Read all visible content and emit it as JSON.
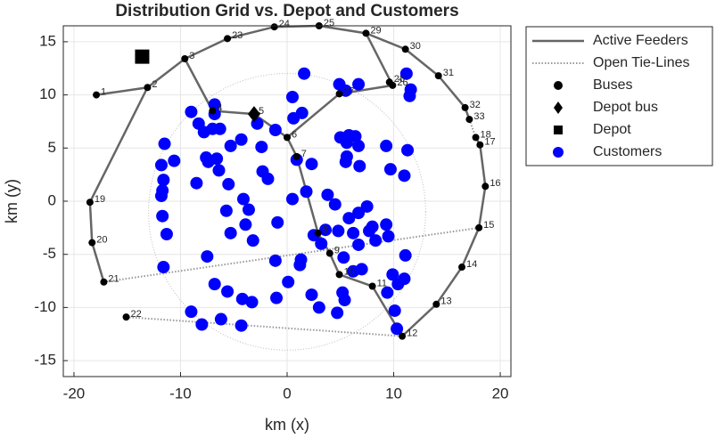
{
  "chart_data": {
    "type": "network",
    "title": "Distribution Grid vs. Depot and Customers",
    "xlabel": "km (x)",
    "ylabel": "km (y)",
    "xlim": [
      -21,
      21
    ],
    "ylim": [
      -16.5,
      16.5
    ],
    "xticks": [
      -20,
      -10,
      0,
      10,
      20
    ],
    "yticks": [
      -15,
      -10,
      -5,
      0,
      5,
      10,
      15
    ],
    "grid": true,
    "lines": [
      {
        "name": "Active Feeders",
        "color": "#666666",
        "style": "solid",
        "x": [
          -17.9,
          -13.1,
          -9.6,
          -5.6,
          -1.2,
          3.0,
          7.4,
          11.1,
          14.2,
          16.7,
          17.1,
          null,
          17.7,
          18.1,
          18.6,
          18.0,
          16.4,
          14.0,
          10.8,
          null,
          -9.6,
          -7.0,
          -3.1,
          0,
          0.9,
          2.9,
          4.0,
          4.9,
          8.0,
          10.8,
          null,
          -13.1,
          -18.5,
          -18.3,
          -17.2,
          null,
          0,
          4.9,
          9.9,
          7.4
        ],
        "y": [
          10.0,
          10.7,
          13.4,
          15.3,
          16.4,
          16.5,
          15.8,
          14.3,
          11.8,
          8.8,
          7.7,
          null,
          6.0,
          5.3,
          1.4,
          -2.5,
          -6.2,
          -9.7,
          -12.7,
          null,
          13.4,
          8.5,
          8.2,
          6.0,
          4.2,
          -3.0,
          -4.9,
          -6.9,
          -8.0,
          -12.7,
          null,
          10.7,
          -0.1,
          -3.9,
          -7.6,
          null,
          6.0,
          10.1,
          10.9,
          15.8
        ]
      },
      {
        "name": "Open Tie-Lines",
        "color": "#999999",
        "style": "dotted",
        "x": [
          -17.2,
          18.0,
          null,
          -15.1,
          10.8,
          null,
          17.1,
          17.7
        ],
        "y": [
          -7.6,
          -2.5,
          null,
          -10.9,
          -12.7,
          null,
          7.7,
          6.0
        ]
      }
    ],
    "buses": {
      "name": "Buses",
      "color": "#000000",
      "labels": [
        "1",
        "2",
        "3",
        "4",
        "5",
        "6",
        "7",
        "8",
        "9",
        "10",
        "11",
        "12",
        "13",
        "14",
        "15",
        "16",
        "17",
        "18",
        "19",
        "20",
        "21",
        "22",
        "23",
        "24",
        "25",
        "26",
        "27",
        "28",
        "29",
        "30",
        "31",
        "32",
        "33"
      ],
      "x": [
        -17.9,
        -13.1,
        -9.6,
        -7.0,
        -3.1,
        0,
        0.9,
        2.9,
        4.0,
        4.9,
        8.0,
        10.8,
        14.0,
        16.4,
        18.0,
        18.6,
        18.1,
        17.7,
        -18.5,
        -18.3,
        -17.2,
        -15.1,
        -5.6,
        -1.2,
        3.0,
        9.9,
        4.9,
        9.6,
        7.4,
        11.1,
        14.2,
        16.7,
        17.1
      ],
      "y": [
        10.0,
        10.7,
        13.4,
        8.5,
        8.2,
        6.0,
        4.2,
        -3.0,
        -4.9,
        -6.9,
        -8.0,
        -12.7,
        -9.7,
        -6.2,
        -2.5,
        1.4,
        5.3,
        6.0,
        -0.1,
        -3.9,
        -7.6,
        -10.9,
        15.3,
        16.4,
        16.5,
        10.9,
        10.1,
        11.2,
        15.8,
        14.3,
        11.8,
        8.8,
        7.7
      ]
    },
    "depot_bus": {
      "name": "Depot bus",
      "color": "#000000",
      "x": -3.1,
      "y": 8.2
    },
    "depot": {
      "name": "Depot",
      "color": "#000000",
      "x": -13.6,
      "y": 13.6
    },
    "customers": {
      "name": "Customers",
      "color": "#0000ff",
      "x": [
        -11.5,
        -11.8,
        -10.6,
        -11.6,
        -11.7,
        -11.8,
        -11.7,
        -11.3,
        -11.6,
        -9.0,
        -8.3,
        -7.8,
        -6.8,
        -6.8,
        -7.0,
        -6.3,
        -8.5,
        -7.6,
        -7.4,
        -6.6,
        -6.4,
        -5.5,
        -5.3,
        -4.3,
        -2.8,
        -2.4,
        -1.1,
        -2.3,
        -1.8,
        -4.1,
        -3.6,
        -5.7,
        -3.9,
        -5.3,
        -3.2,
        -7.5,
        -6.8,
        -5.6,
        -4.2,
        -3.3,
        -1.0,
        -9.0,
        -8.0,
        -6.2,
        -4.3,
        -1.1,
        -0.9,
        0.5,
        0.9,
        2.3,
        1.8,
        3.8,
        4.5,
        4.8,
        3.2,
        5.3,
        6.2,
        7.0,
        5.4,
        4.7,
        5.2,
        2.3,
        3.0,
        1.2,
        1.3,
        0.1,
        6.7,
        6.2,
        7.7,
        5.8,
        6.7,
        7.5,
        8.0,
        9.3,
        8.3,
        9.5,
        9.9,
        10.4,
        11.0,
        11.1,
        9.4,
        10.1,
        10.3,
        9.7,
        11.0,
        11.3,
        11.6,
        11.5,
        11.2,
        4.9,
        6.7,
        5.5,
        1.6,
        0.5,
        1.4,
        0.6,
        5.0,
        5.8,
        6.4,
        5.6,
        6.7,
        5.6,
        5.5,
        6.8,
        9.3,
        3.6,
        2.5
      ],
      "y": [
        5.4,
        3.4,
        3.8,
        2.0,
        1.0,
        0.5,
        -1.4,
        -3.1,
        -6.2,
        8.4,
        7.3,
        6.5,
        9.1,
        8.2,
        6.8,
        6.8,
        1.7,
        4.1,
        3.7,
        4.0,
        2.9,
        1.6,
        5.2,
        5.8,
        7.3,
        5.1,
        6.7,
        2.8,
        2.1,
        0.2,
        -0.8,
        -0.9,
        -2.2,
        -3.0,
        -3.7,
        -5.2,
        -7.8,
        -8.5,
        -9.2,
        -9.5,
        -9.1,
        -10.4,
        -11.6,
        -11.1,
        -11.7,
        -5.6,
        -2.0,
        0.2,
        3.9,
        3.5,
        0.9,
        0.6,
        -0.3,
        -2.8,
        -4.0,
        -5.3,
        -6.6,
        -6.4,
        -9.3,
        -10.5,
        -8.6,
        -8.8,
        -10.0,
        -6.0,
        -5.5,
        -7.6,
        -4.1,
        -3.0,
        -2.8,
        -1.6,
        -1.1,
        -0.5,
        -2.4,
        -2.2,
        -3.7,
        -3.3,
        -6.9,
        -7.8,
        -7.3,
        -5.1,
        -8.6,
        -10.3,
        -12.0,
        3.0,
        2.4,
        4.8,
        10.5,
        9.9,
        12.0,
        11.0,
        11.0,
        10.4,
        12.0,
        9.8,
        8.3,
        7.8,
        6.0,
        6.2,
        6.1,
        5.5,
        5.2,
        4.2,
        3.7,
        3.3,
        5.2,
        -2.7,
        -3.2
      ]
    }
  }
}
